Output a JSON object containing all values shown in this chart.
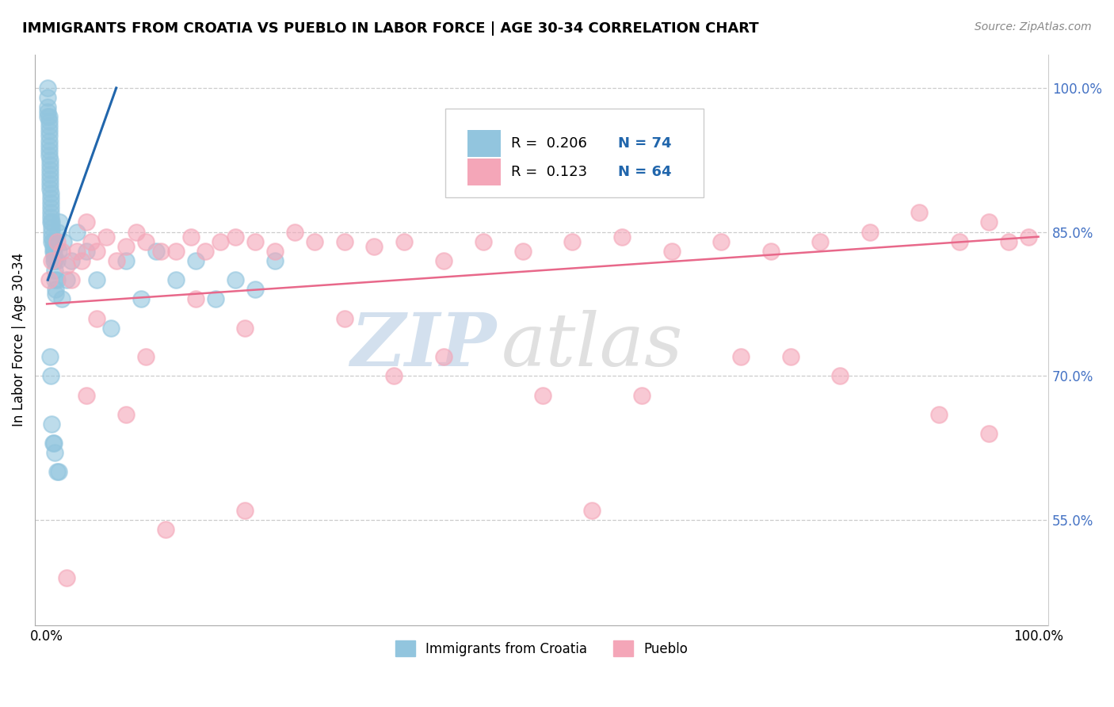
{
  "title": "IMMIGRANTS FROM CROATIA VS PUEBLO IN LABOR FORCE | AGE 30-34 CORRELATION CHART",
  "source": "Source: ZipAtlas.com",
  "ylabel": "In Labor Force | Age 30-34",
  "x_tick_labels": [
    "0.0%",
    "100.0%"
  ],
  "y_tick_labels": [
    "55.0%",
    "70.0%",
    "85.0%",
    "100.0%"
  ],
  "y_ticks": [
    0.55,
    0.7,
    0.85,
    1.0
  ],
  "legend_labels": [
    "Immigrants from Croatia",
    "Pueblo"
  ],
  "r_croatia": "0.206",
  "n_croatia": "74",
  "r_pueblo": "0.123",
  "n_pueblo": "64",
  "blue_color": "#92c5de",
  "pink_color": "#f4a6b8",
  "blue_line_color": "#2166ac",
  "pink_line_color": "#e8688a",
  "watermark_zip": "ZIP",
  "watermark_atlas": "atlas",
  "xlim_min": -0.012,
  "xlim_max": 1.01,
  "ylim_min": 0.44,
  "ylim_max": 1.035,
  "blue_x": [
    0.001,
    0.001,
    0.001,
    0.001,
    0.001,
    0.002,
    0.002,
    0.002,
    0.002,
    0.002,
    0.002,
    0.002,
    0.002,
    0.002,
    0.003,
    0.003,
    0.003,
    0.003,
    0.003,
    0.003,
    0.003,
    0.004,
    0.004,
    0.004,
    0.004,
    0.004,
    0.004,
    0.004,
    0.005,
    0.005,
    0.005,
    0.005,
    0.005,
    0.006,
    0.006,
    0.006,
    0.007,
    0.007,
    0.007,
    0.008,
    0.008,
    0.008,
    0.009,
    0.009,
    0.01,
    0.01,
    0.011,
    0.012,
    0.013,
    0.015,
    0.017,
    0.02,
    0.025,
    0.03,
    0.04,
    0.05,
    0.065,
    0.08,
    0.095,
    0.11,
    0.13,
    0.15,
    0.17,
    0.19,
    0.21,
    0.23,
    0.003,
    0.004,
    0.005,
    0.006,
    0.007,
    0.008,
    0.01,
    0.012
  ],
  "blue_y": [
    1.0,
    0.99,
    0.98,
    0.975,
    0.97,
    0.97,
    0.965,
    0.96,
    0.955,
    0.95,
    0.945,
    0.94,
    0.935,
    0.93,
    0.925,
    0.92,
    0.915,
    0.91,
    0.905,
    0.9,
    0.895,
    0.89,
    0.885,
    0.88,
    0.875,
    0.87,
    0.865,
    0.86,
    0.86,
    0.855,
    0.85,
    0.845,
    0.84,
    0.84,
    0.835,
    0.83,
    0.83,
    0.825,
    0.82,
    0.82,
    0.81,
    0.8,
    0.79,
    0.785,
    0.8,
    0.82,
    0.85,
    0.83,
    0.86,
    0.78,
    0.84,
    0.8,
    0.82,
    0.85,
    0.83,
    0.8,
    0.75,
    0.82,
    0.78,
    0.83,
    0.8,
    0.82,
    0.78,
    0.8,
    0.79,
    0.82,
    0.72,
    0.7,
    0.65,
    0.63,
    0.63,
    0.62,
    0.6,
    0.6
  ],
  "pink_x": [
    0.002,
    0.005,
    0.01,
    0.015,
    0.02,
    0.025,
    0.03,
    0.035,
    0.04,
    0.045,
    0.05,
    0.06,
    0.07,
    0.08,
    0.09,
    0.1,
    0.115,
    0.13,
    0.145,
    0.16,
    0.175,
    0.19,
    0.21,
    0.23,
    0.25,
    0.27,
    0.3,
    0.33,
    0.36,
    0.4,
    0.44,
    0.48,
    0.53,
    0.58,
    0.63,
    0.68,
    0.73,
    0.78,
    0.83,
    0.88,
    0.92,
    0.95,
    0.97,
    0.99,
    0.05,
    0.1,
    0.15,
    0.2,
    0.3,
    0.4,
    0.5,
    0.6,
    0.7,
    0.8,
    0.9,
    0.04,
    0.08,
    0.12,
    0.2,
    0.35,
    0.55,
    0.75,
    0.95,
    0.02
  ],
  "pink_y": [
    0.8,
    0.82,
    0.84,
    0.83,
    0.815,
    0.8,
    0.83,
    0.82,
    0.86,
    0.84,
    0.83,
    0.845,
    0.82,
    0.835,
    0.85,
    0.84,
    0.83,
    0.83,
    0.845,
    0.83,
    0.84,
    0.845,
    0.84,
    0.83,
    0.85,
    0.84,
    0.84,
    0.835,
    0.84,
    0.82,
    0.84,
    0.83,
    0.84,
    0.845,
    0.83,
    0.84,
    0.83,
    0.84,
    0.85,
    0.87,
    0.84,
    0.86,
    0.84,
    0.845,
    0.76,
    0.72,
    0.78,
    0.75,
    0.76,
    0.72,
    0.68,
    0.68,
    0.72,
    0.7,
    0.66,
    0.68,
    0.66,
    0.54,
    0.56,
    0.7,
    0.56,
    0.72,
    0.64,
    0.49
  ],
  "blue_line_x0": 0.001,
  "blue_line_x1": 0.07,
  "blue_line_y0": 0.8,
  "blue_line_y1": 1.0,
  "pink_line_x0": 0.0,
  "pink_line_x1": 1.0,
  "pink_line_y0": 0.775,
  "pink_line_y1": 0.845
}
